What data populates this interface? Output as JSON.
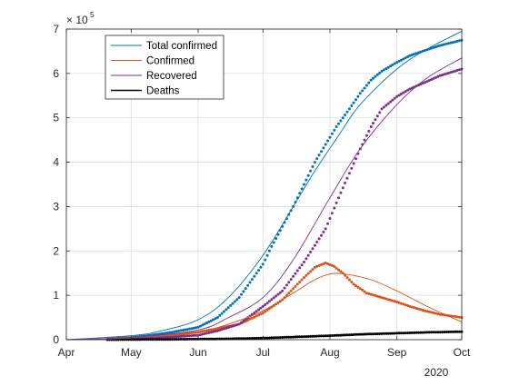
{
  "chart_data": {
    "type": "line",
    "x_axis": {
      "type": "date",
      "range": [
        "2020-04-01",
        "2020-10-01"
      ],
      "ticks": [
        {
          "date": "2020-04-01",
          "label": "Apr"
        },
        {
          "date": "2020-05-01",
          "label": "May"
        },
        {
          "date": "2020-06-01",
          "label": "Jun"
        },
        {
          "date": "2020-07-01",
          "label": "Jul"
        },
        {
          "date": "2020-08-01",
          "label": "Aug"
        },
        {
          "date": "2020-09-01",
          "label": "Sep"
        },
        {
          "date": "2020-10-01",
          "label": "Oct"
        }
      ],
      "secondary_label": "2020"
    },
    "y_axis": {
      "range": [
        0,
        700000
      ],
      "ticks": [
        0,
        100000,
        200000,
        300000,
        400000,
        500000,
        600000,
        700000
      ],
      "tick_labels": [
        "0",
        "1",
        "2",
        "3",
        "4",
        "5",
        "6",
        "7"
      ],
      "exponent_label": "× 10",
      "exponent_power": "5"
    },
    "grid": true,
    "legend": {
      "position": "top-left",
      "entries": [
        {
          "label": "Total confirmed",
          "color": "#0072BD"
        },
        {
          "label": "Confirmed",
          "color": "#D95319"
        },
        {
          "label": "Recovered",
          "color": "#7E2F8E"
        },
        {
          "label": "Deaths",
          "color": "#000000"
        }
      ]
    },
    "series": [
      {
        "name": "Total confirmed",
        "color": "#0072BD",
        "marker": "dots",
        "data": [
          [
            "2020-04-20",
            2500
          ],
          [
            "2020-05-01",
            5000
          ],
          [
            "2020-05-10",
            10000
          ],
          [
            "2020-05-20",
            17000
          ],
          [
            "2020-06-01",
            28000
          ],
          [
            "2020-06-10",
            50000
          ],
          [
            "2020-06-20",
            95000
          ],
          [
            "2020-07-01",
            170000
          ],
          [
            "2020-07-05",
            210000
          ],
          [
            "2020-07-10",
            255000
          ],
          [
            "2020-07-15",
            300000
          ],
          [
            "2020-07-20",
            350000
          ],
          [
            "2020-07-25",
            400000
          ],
          [
            "2020-07-30",
            440000
          ],
          [
            "2020-08-04",
            480000
          ],
          [
            "2020-08-10",
            520000
          ],
          [
            "2020-08-15",
            555000
          ],
          [
            "2020-08-20",
            585000
          ],
          [
            "2020-08-25",
            605000
          ],
          [
            "2020-09-01",
            625000
          ],
          [
            "2020-09-07",
            640000
          ],
          [
            "2020-09-14",
            652000
          ],
          [
            "2020-09-21",
            663000
          ],
          [
            "2020-10-01",
            675000
          ]
        ]
      },
      {
        "name": "Confirmed",
        "color": "#D95319",
        "marker": "dots",
        "data": [
          [
            "2020-04-20",
            2000
          ],
          [
            "2020-05-01",
            3500
          ],
          [
            "2020-05-10",
            6000
          ],
          [
            "2020-05-20",
            10000
          ],
          [
            "2020-06-01",
            17000
          ],
          [
            "2020-06-10",
            25000
          ],
          [
            "2020-06-20",
            35000
          ],
          [
            "2020-07-01",
            60000
          ],
          [
            "2020-07-10",
            90000
          ],
          [
            "2020-07-15",
            115000
          ],
          [
            "2020-07-20",
            140000
          ],
          [
            "2020-07-25",
            163000
          ],
          [
            "2020-07-30",
            173000
          ],
          [
            "2020-08-03",
            165000
          ],
          [
            "2020-08-07",
            150000
          ],
          [
            "2020-08-12",
            125000
          ],
          [
            "2020-08-18",
            105000
          ],
          [
            "2020-08-25",
            95000
          ],
          [
            "2020-09-01",
            85000
          ],
          [
            "2020-09-07",
            75000
          ],
          [
            "2020-09-14",
            65000
          ],
          [
            "2020-09-21",
            57000
          ],
          [
            "2020-10-01",
            50000
          ]
        ]
      },
      {
        "name": "Recovered",
        "color": "#7E2F8E",
        "marker": "dots",
        "data": [
          [
            "2020-04-20",
            500
          ],
          [
            "2020-05-01",
            1500
          ],
          [
            "2020-05-10",
            3000
          ],
          [
            "2020-05-20",
            6000
          ],
          [
            "2020-06-01",
            10000
          ],
          [
            "2020-06-10",
            20000
          ],
          [
            "2020-06-20",
            35000
          ],
          [
            "2020-07-01",
            75000
          ],
          [
            "2020-07-10",
            110000
          ],
          [
            "2020-07-20",
            175000
          ],
          [
            "2020-07-30",
            250000
          ],
          [
            "2020-08-05",
            320000
          ],
          [
            "2020-08-10",
            375000
          ],
          [
            "2020-08-15",
            430000
          ],
          [
            "2020-08-20",
            480000
          ],
          [
            "2020-08-25",
            520000
          ],
          [
            "2020-09-01",
            548000
          ],
          [
            "2020-09-07",
            565000
          ],
          [
            "2020-09-14",
            580000
          ],
          [
            "2020-09-21",
            595000
          ],
          [
            "2020-10-01",
            610000
          ]
        ]
      },
      {
        "name": "Deaths",
        "color": "#000000",
        "marker": "dots",
        "data": [
          [
            "2020-04-20",
            0
          ],
          [
            "2020-05-15",
            500
          ],
          [
            "2020-06-15",
            2000
          ],
          [
            "2020-07-01",
            3500
          ],
          [
            "2020-07-15",
            6000
          ],
          [
            "2020-08-01",
            9000
          ],
          [
            "2020-08-15",
            12000
          ],
          [
            "2020-09-01",
            14500
          ],
          [
            "2020-09-15",
            16500
          ],
          [
            "2020-10-01",
            18000
          ]
        ]
      },
      {
        "name": "Total confirmed",
        "color": "#0072BD",
        "marker": "fit-line",
        "data": [
          [
            "2020-04-01",
            0
          ],
          [
            "2020-05-01",
            9000
          ],
          [
            "2020-05-15",
            20000
          ],
          [
            "2020-06-01",
            45000
          ],
          [
            "2020-06-15",
            95000
          ],
          [
            "2020-07-01",
            190000
          ],
          [
            "2020-07-15",
            300000
          ],
          [
            "2020-07-25",
            380000
          ],
          [
            "2020-08-05",
            460000
          ],
          [
            "2020-08-15",
            530000
          ],
          [
            "2020-09-01",
            610000
          ],
          [
            "2020-09-15",
            655000
          ],
          [
            "2020-10-01",
            695000
          ]
        ]
      },
      {
        "name": "Confirmed",
        "color": "#D95319",
        "marker": "fit-line",
        "data": [
          [
            "2020-04-01",
            0
          ],
          [
            "2020-05-01",
            4000
          ],
          [
            "2020-06-01",
            18000
          ],
          [
            "2020-06-15",
            35000
          ],
          [
            "2020-07-01",
            65000
          ],
          [
            "2020-07-15",
            105000
          ],
          [
            "2020-07-25",
            135000
          ],
          [
            "2020-08-01",
            148000
          ],
          [
            "2020-08-08",
            148000
          ],
          [
            "2020-08-20",
            135000
          ],
          [
            "2020-09-01",
            110000
          ],
          [
            "2020-09-15",
            75000
          ],
          [
            "2020-10-01",
            40000
          ]
        ]
      },
      {
        "name": "Recovered",
        "color": "#7E2F8E",
        "marker": "fit-line",
        "data": [
          [
            "2020-04-01",
            0
          ],
          [
            "2020-05-01",
            5000
          ],
          [
            "2020-06-01",
            22000
          ],
          [
            "2020-06-15",
            50000
          ],
          [
            "2020-07-01",
            95000
          ],
          [
            "2020-07-15",
            180000
          ],
          [
            "2020-08-01",
            320000
          ],
          [
            "2020-08-15",
            430000
          ],
          [
            "2020-09-01",
            530000
          ],
          [
            "2020-09-15",
            590000
          ],
          [
            "2020-10-01",
            635000
          ]
        ]
      }
    ]
  }
}
